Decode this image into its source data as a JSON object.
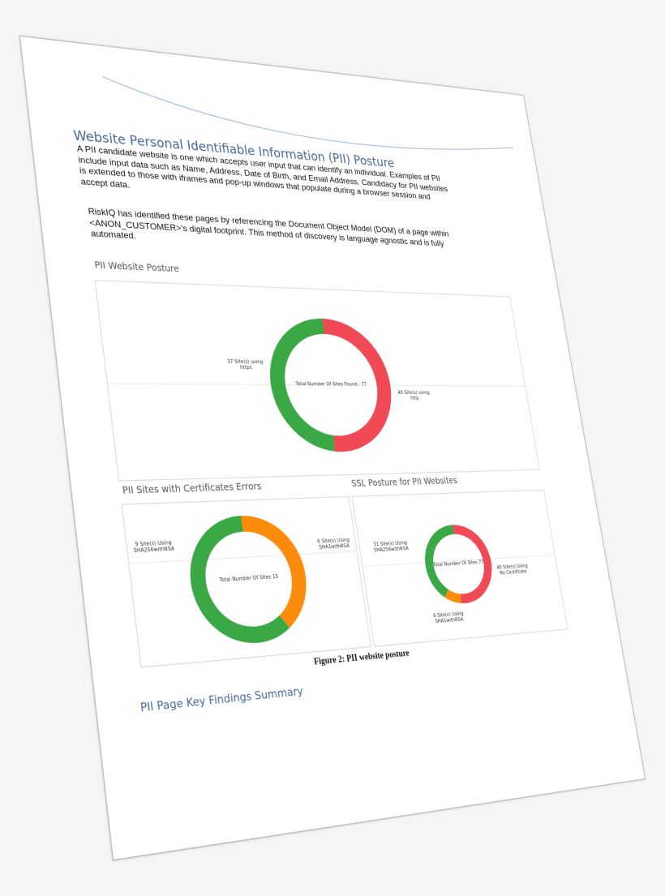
{
  "document": {
    "title": "Website Personal Identifiable Information (PII) Posture",
    "paragraph1": [
      "A PII candidate website is one which accepts user input that can identify an individual. Examples of PII",
      "include input data such as Name, Address, Date of Birth, and Email Address. Candidacy for PII websites",
      "is extended to those with iframes and pop-up windows that populate during a browser session and",
      "accept data."
    ],
    "paragraph2": [
      "RiskIQ has identified these pages by referencing the Document Object Model (DOM) of a page within",
      "<ANON_CUSTOMER>'s digital footprint. This method of discovery is language agnostic and is fully",
      "automated."
    ],
    "figure_caption": "Figure 2: PII website posture",
    "next_heading": "PII Page Key Findings Summary"
  },
  "colors": {
    "green": "#3ba846",
    "red": "#ef4a55",
    "orange": "#fb8b0b",
    "heading": "#44679b"
  },
  "chart_data": [
    {
      "type": "pie",
      "donut": true,
      "title": "PII Website Posture",
      "center_label": "Total Number Of Sites Found : 77",
      "slices": [
        {
          "label": "40 Site(s) using http",
          "lines": [
            "40 Site(s) using",
            "http"
          ],
          "value": 40,
          "color": "#ef4a55"
        },
        {
          "label": "37 Site(s) using https",
          "lines": [
            "37 Site(s) using",
            "https"
          ],
          "value": 37,
          "color": "#3ba846"
        }
      ]
    },
    {
      "type": "pie",
      "donut": true,
      "title": "PII Sites with Certificates Errors",
      "center_label": "Total Number Of Sites 15",
      "slices": [
        {
          "label": "6 Site(s) Using SHA1withRSA",
          "lines": [
            "6 Site(s) Using",
            "SHA1withRSA"
          ],
          "value": 6,
          "color": "#fb8b0b"
        },
        {
          "label": "9 Site(s) Using SHA256withRSA",
          "lines": [
            "9 Site(s) Using",
            "SHA256withRSA"
          ],
          "value": 9,
          "color": "#3ba846"
        }
      ]
    },
    {
      "type": "pie",
      "donut": true,
      "title": "SSL Posture for PII Websites",
      "center_label": "Total Number Of Sites 77",
      "slices": [
        {
          "label": "40 Site(s) Using No Certificate",
          "lines": [
            "40 Site(s) Using",
            "No Certificate"
          ],
          "value": 40,
          "color": "#ef4a55"
        },
        {
          "label": "6 Site(s) Using SHA1withRSA",
          "lines": [
            "6 Site(s) Using",
            "SHA1withRSA"
          ],
          "value": 6,
          "color": "#fb8b0b"
        },
        {
          "label": "31 Site(s) Using SHA256withRSA",
          "lines": [
            "31 Site(s) Using",
            "SHA256withRSA"
          ],
          "value": 31,
          "color": "#3ba846"
        }
      ]
    }
  ]
}
